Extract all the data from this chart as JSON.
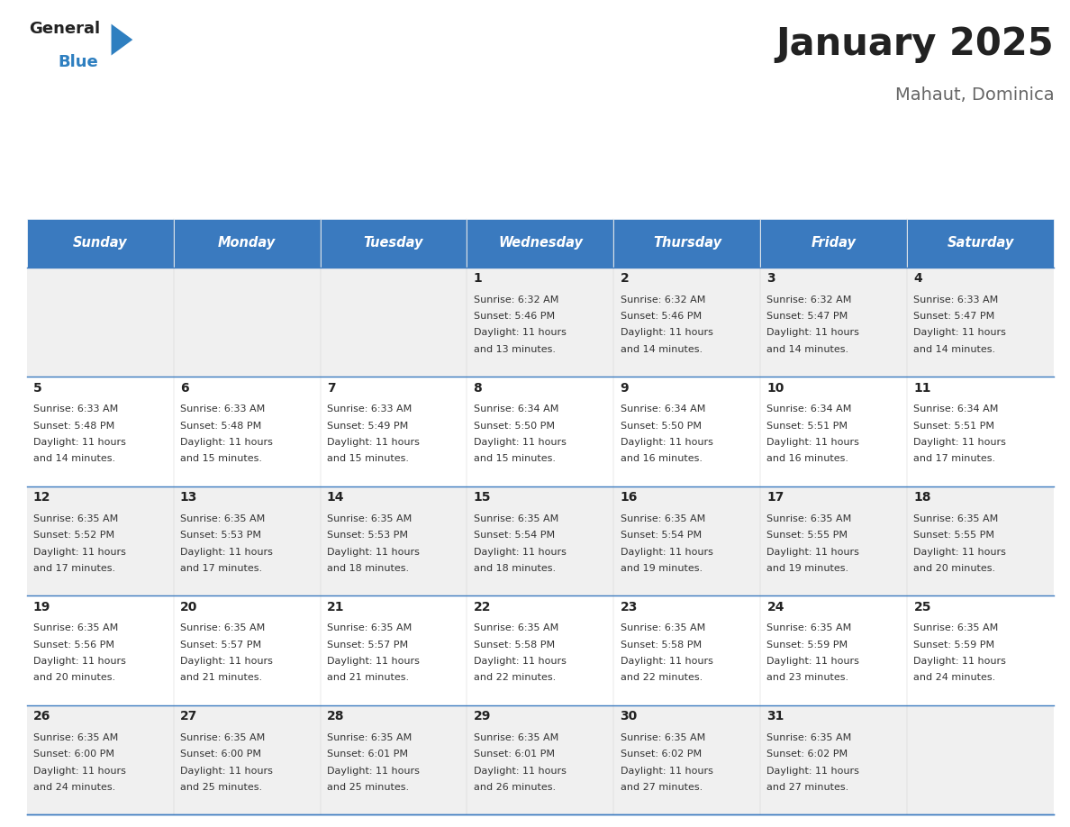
{
  "title": "January 2025",
  "subtitle": "Mahaut, Dominica",
  "days_of_week": [
    "Sunday",
    "Monday",
    "Tuesday",
    "Wednesday",
    "Thursday",
    "Friday",
    "Saturday"
  ],
  "header_bg": "#3a7abf",
  "header_text": "#ffffff",
  "row_bg_odd": "#f0f0f0",
  "row_bg_even": "#ffffff",
  "cell_border": "#3a7abf",
  "day_num_color": "#222222",
  "info_text_color": "#333333",
  "title_color": "#222222",
  "subtitle_color": "#666666",
  "logo_general_color": "#222222",
  "logo_blue_color": "#2e7fc0",
  "weeks": [
    [
      {
        "day": "",
        "sunrise": "",
        "sunset": "",
        "daylight": ""
      },
      {
        "day": "",
        "sunrise": "",
        "sunset": "",
        "daylight": ""
      },
      {
        "day": "",
        "sunrise": "",
        "sunset": "",
        "daylight": ""
      },
      {
        "day": "1",
        "sunrise": "6:32 AM",
        "sunset": "5:46 PM",
        "daylight": "11 hours and 13 minutes."
      },
      {
        "day": "2",
        "sunrise": "6:32 AM",
        "sunset": "5:46 PM",
        "daylight": "11 hours and 14 minutes."
      },
      {
        "day": "3",
        "sunrise": "6:32 AM",
        "sunset": "5:47 PM",
        "daylight": "11 hours and 14 minutes."
      },
      {
        "day": "4",
        "sunrise": "6:33 AM",
        "sunset": "5:47 PM",
        "daylight": "11 hours and 14 minutes."
      }
    ],
    [
      {
        "day": "5",
        "sunrise": "6:33 AM",
        "sunset": "5:48 PM",
        "daylight": "11 hours and 14 minutes."
      },
      {
        "day": "6",
        "sunrise": "6:33 AM",
        "sunset": "5:48 PM",
        "daylight": "11 hours and 15 minutes."
      },
      {
        "day": "7",
        "sunrise": "6:33 AM",
        "sunset": "5:49 PM",
        "daylight": "11 hours and 15 minutes."
      },
      {
        "day": "8",
        "sunrise": "6:34 AM",
        "sunset": "5:50 PM",
        "daylight": "11 hours and 15 minutes."
      },
      {
        "day": "9",
        "sunrise": "6:34 AM",
        "sunset": "5:50 PM",
        "daylight": "11 hours and 16 minutes."
      },
      {
        "day": "10",
        "sunrise": "6:34 AM",
        "sunset": "5:51 PM",
        "daylight": "11 hours and 16 minutes."
      },
      {
        "day": "11",
        "sunrise": "6:34 AM",
        "sunset": "5:51 PM",
        "daylight": "11 hours and 17 minutes."
      }
    ],
    [
      {
        "day": "12",
        "sunrise": "6:35 AM",
        "sunset": "5:52 PM",
        "daylight": "11 hours and 17 minutes."
      },
      {
        "day": "13",
        "sunrise": "6:35 AM",
        "sunset": "5:53 PM",
        "daylight": "11 hours and 17 minutes."
      },
      {
        "day": "14",
        "sunrise": "6:35 AM",
        "sunset": "5:53 PM",
        "daylight": "11 hours and 18 minutes."
      },
      {
        "day": "15",
        "sunrise": "6:35 AM",
        "sunset": "5:54 PM",
        "daylight": "11 hours and 18 minutes."
      },
      {
        "day": "16",
        "sunrise": "6:35 AM",
        "sunset": "5:54 PM",
        "daylight": "11 hours and 19 minutes."
      },
      {
        "day": "17",
        "sunrise": "6:35 AM",
        "sunset": "5:55 PM",
        "daylight": "11 hours and 19 minutes."
      },
      {
        "day": "18",
        "sunrise": "6:35 AM",
        "sunset": "5:55 PM",
        "daylight": "11 hours and 20 minutes."
      }
    ],
    [
      {
        "day": "19",
        "sunrise": "6:35 AM",
        "sunset": "5:56 PM",
        "daylight": "11 hours and 20 minutes."
      },
      {
        "day": "20",
        "sunrise": "6:35 AM",
        "sunset": "5:57 PM",
        "daylight": "11 hours and 21 minutes."
      },
      {
        "day": "21",
        "sunrise": "6:35 AM",
        "sunset": "5:57 PM",
        "daylight": "11 hours and 21 minutes."
      },
      {
        "day": "22",
        "sunrise": "6:35 AM",
        "sunset": "5:58 PM",
        "daylight": "11 hours and 22 minutes."
      },
      {
        "day": "23",
        "sunrise": "6:35 AM",
        "sunset": "5:58 PM",
        "daylight": "11 hours and 22 minutes."
      },
      {
        "day": "24",
        "sunrise": "6:35 AM",
        "sunset": "5:59 PM",
        "daylight": "11 hours and 23 minutes."
      },
      {
        "day": "25",
        "sunrise": "6:35 AM",
        "sunset": "5:59 PM",
        "daylight": "11 hours and 24 minutes."
      }
    ],
    [
      {
        "day": "26",
        "sunrise": "6:35 AM",
        "sunset": "6:00 PM",
        "daylight": "11 hours and 24 minutes."
      },
      {
        "day": "27",
        "sunrise": "6:35 AM",
        "sunset": "6:00 PM",
        "daylight": "11 hours and 25 minutes."
      },
      {
        "day": "28",
        "sunrise": "6:35 AM",
        "sunset": "6:01 PM",
        "daylight": "11 hours and 25 minutes."
      },
      {
        "day": "29",
        "sunrise": "6:35 AM",
        "sunset": "6:01 PM",
        "daylight": "11 hours and 26 minutes."
      },
      {
        "day": "30",
        "sunrise": "6:35 AM",
        "sunset": "6:02 PM",
        "daylight": "11 hours and 27 minutes."
      },
      {
        "day": "31",
        "sunrise": "6:35 AM",
        "sunset": "6:02 PM",
        "daylight": "11 hours and 27 minutes."
      },
      {
        "day": "",
        "sunrise": "",
        "sunset": "",
        "daylight": ""
      }
    ]
  ]
}
